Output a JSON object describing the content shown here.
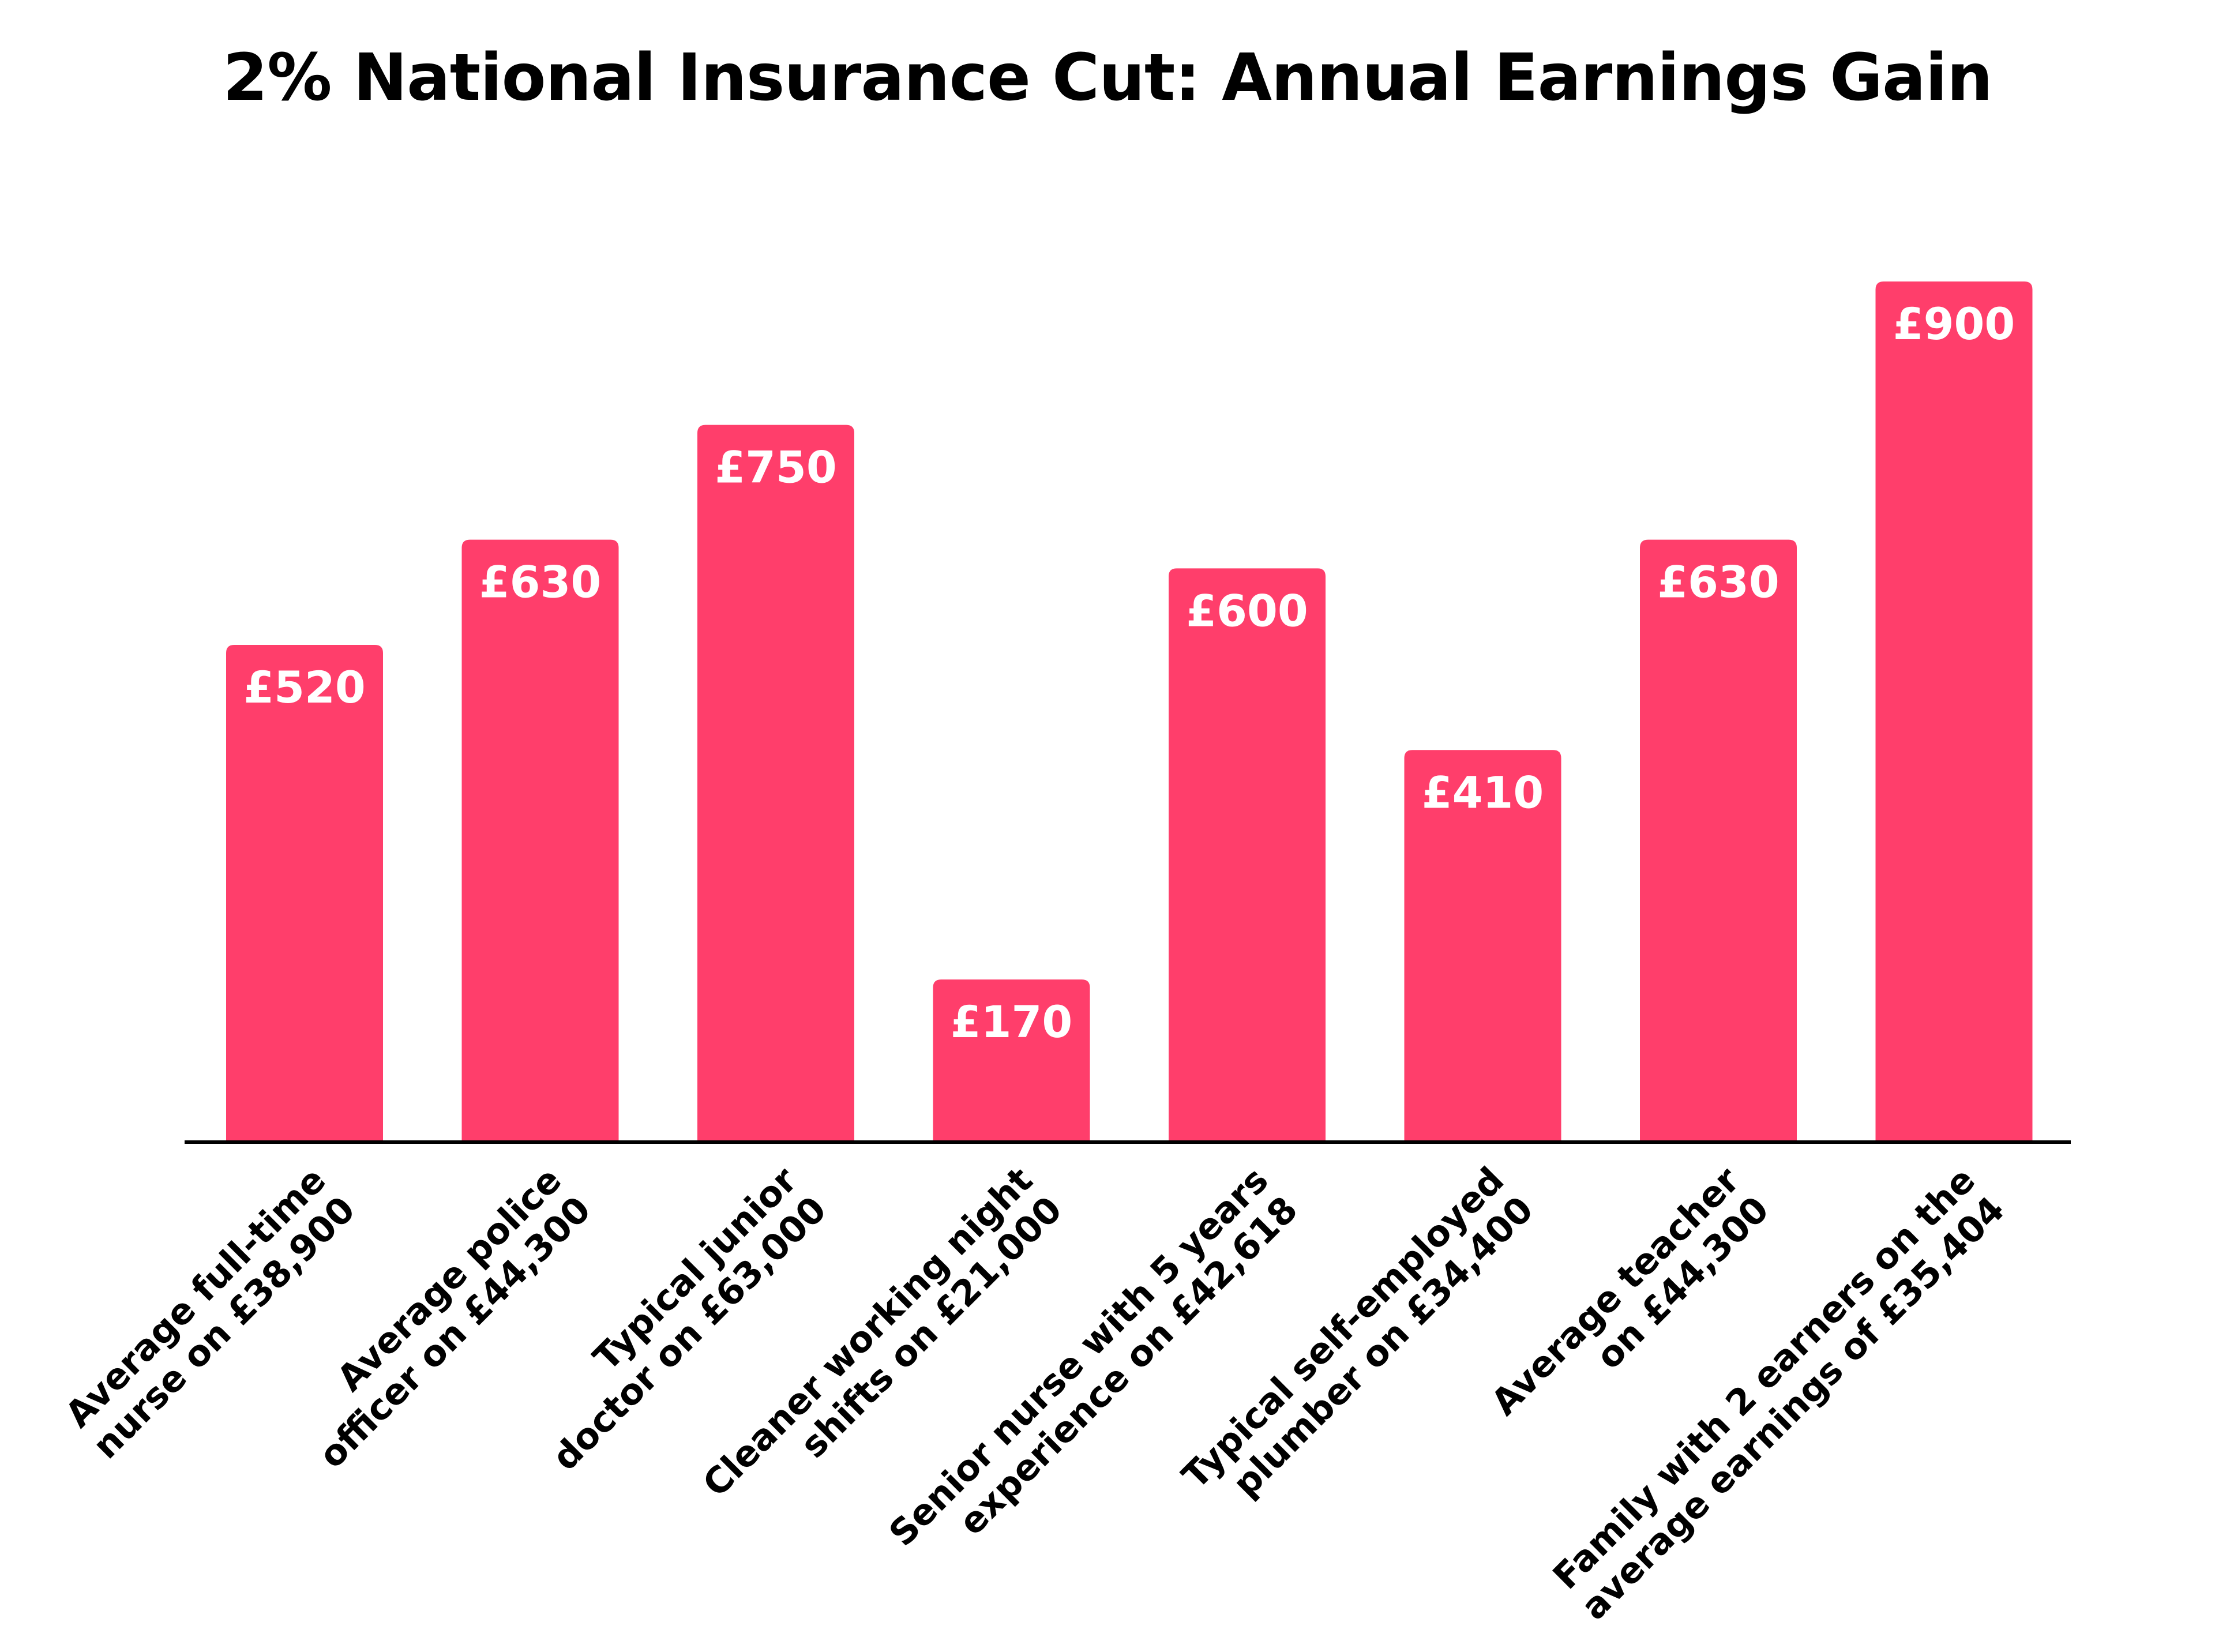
{
  "chart_data": {
    "type": "bar",
    "title": "2% National Insurance Cut: Annual Earnings Gain",
    "categories": [
      [
        "Average full-time",
        "nurse on £38,900"
      ],
      [
        "Average police",
        "officer on £44,300"
      ],
      [
        "Typical junior",
        "doctor on £63,000"
      ],
      [
        "Cleaner working night",
        "shifts on £21,000"
      ],
      [
        "Senior nurse with 5 years",
        "experience on £42,618"
      ],
      [
        "Typical self-employed",
        "plumber on £34,400"
      ],
      [
        "Average teacher",
        "on £44,300"
      ],
      [
        "Family with 2 earners on the",
        "average earnings of £35,404"
      ]
    ],
    "values": [
      520,
      630,
      750,
      170,
      600,
      410,
      630,
      900
    ],
    "value_labels": [
      "£520",
      "£630",
      "£750",
      "£170",
      "£600",
      "£410",
      "£630",
      "£900"
    ],
    "xlabel": "",
    "ylabel": "",
    "ylim": [
      0,
      900
    ],
    "grid": false,
    "legend": "none",
    "bar_color": "#ff3e6b",
    "label_color": "#ffffff",
    "axis_color": "#000000"
  }
}
